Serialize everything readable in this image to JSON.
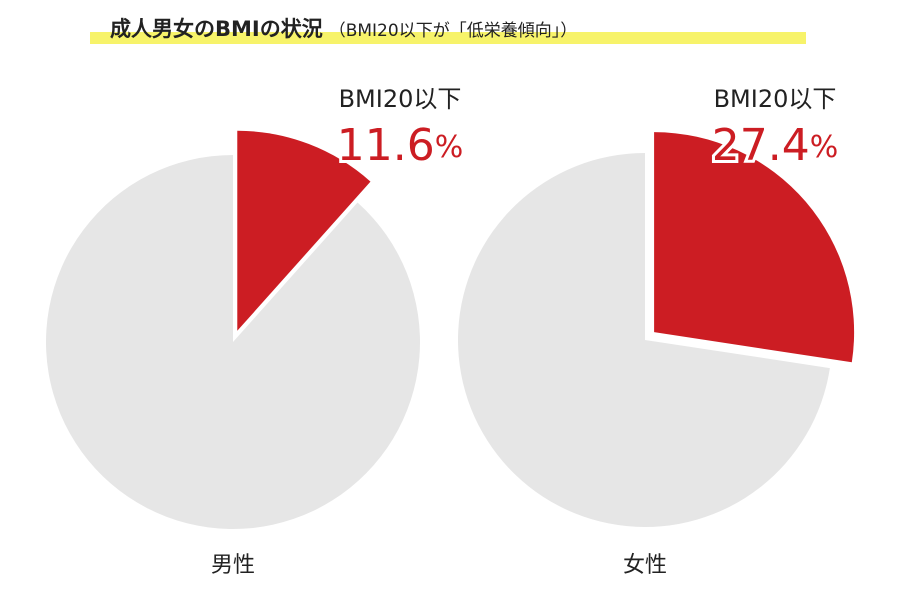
{
  "title": "成人男女のBMIの状況",
  "subtitle": "（BMI20以下が「低栄養傾向」）",
  "chart_data": [
    {
      "type": "pie",
      "title": "男性",
      "categories": [
        "BMI20以下",
        null
      ],
      "values": [
        11.6,
        88.4
      ],
      "value_labels": [
        "11.6%",
        null
      ],
      "colors": [
        "#cc1d23",
        "#e6e6e6"
      ]
    },
    {
      "type": "pie",
      "title": "女性",
      "categories": [
        "BMI20以下",
        null
      ],
      "values": [
        27.4,
        72.6
      ],
      "value_labels": [
        "27.4%",
        null
      ],
      "colors": [
        "#cc1d23",
        "#e6e6e6"
      ]
    }
  ]
}
